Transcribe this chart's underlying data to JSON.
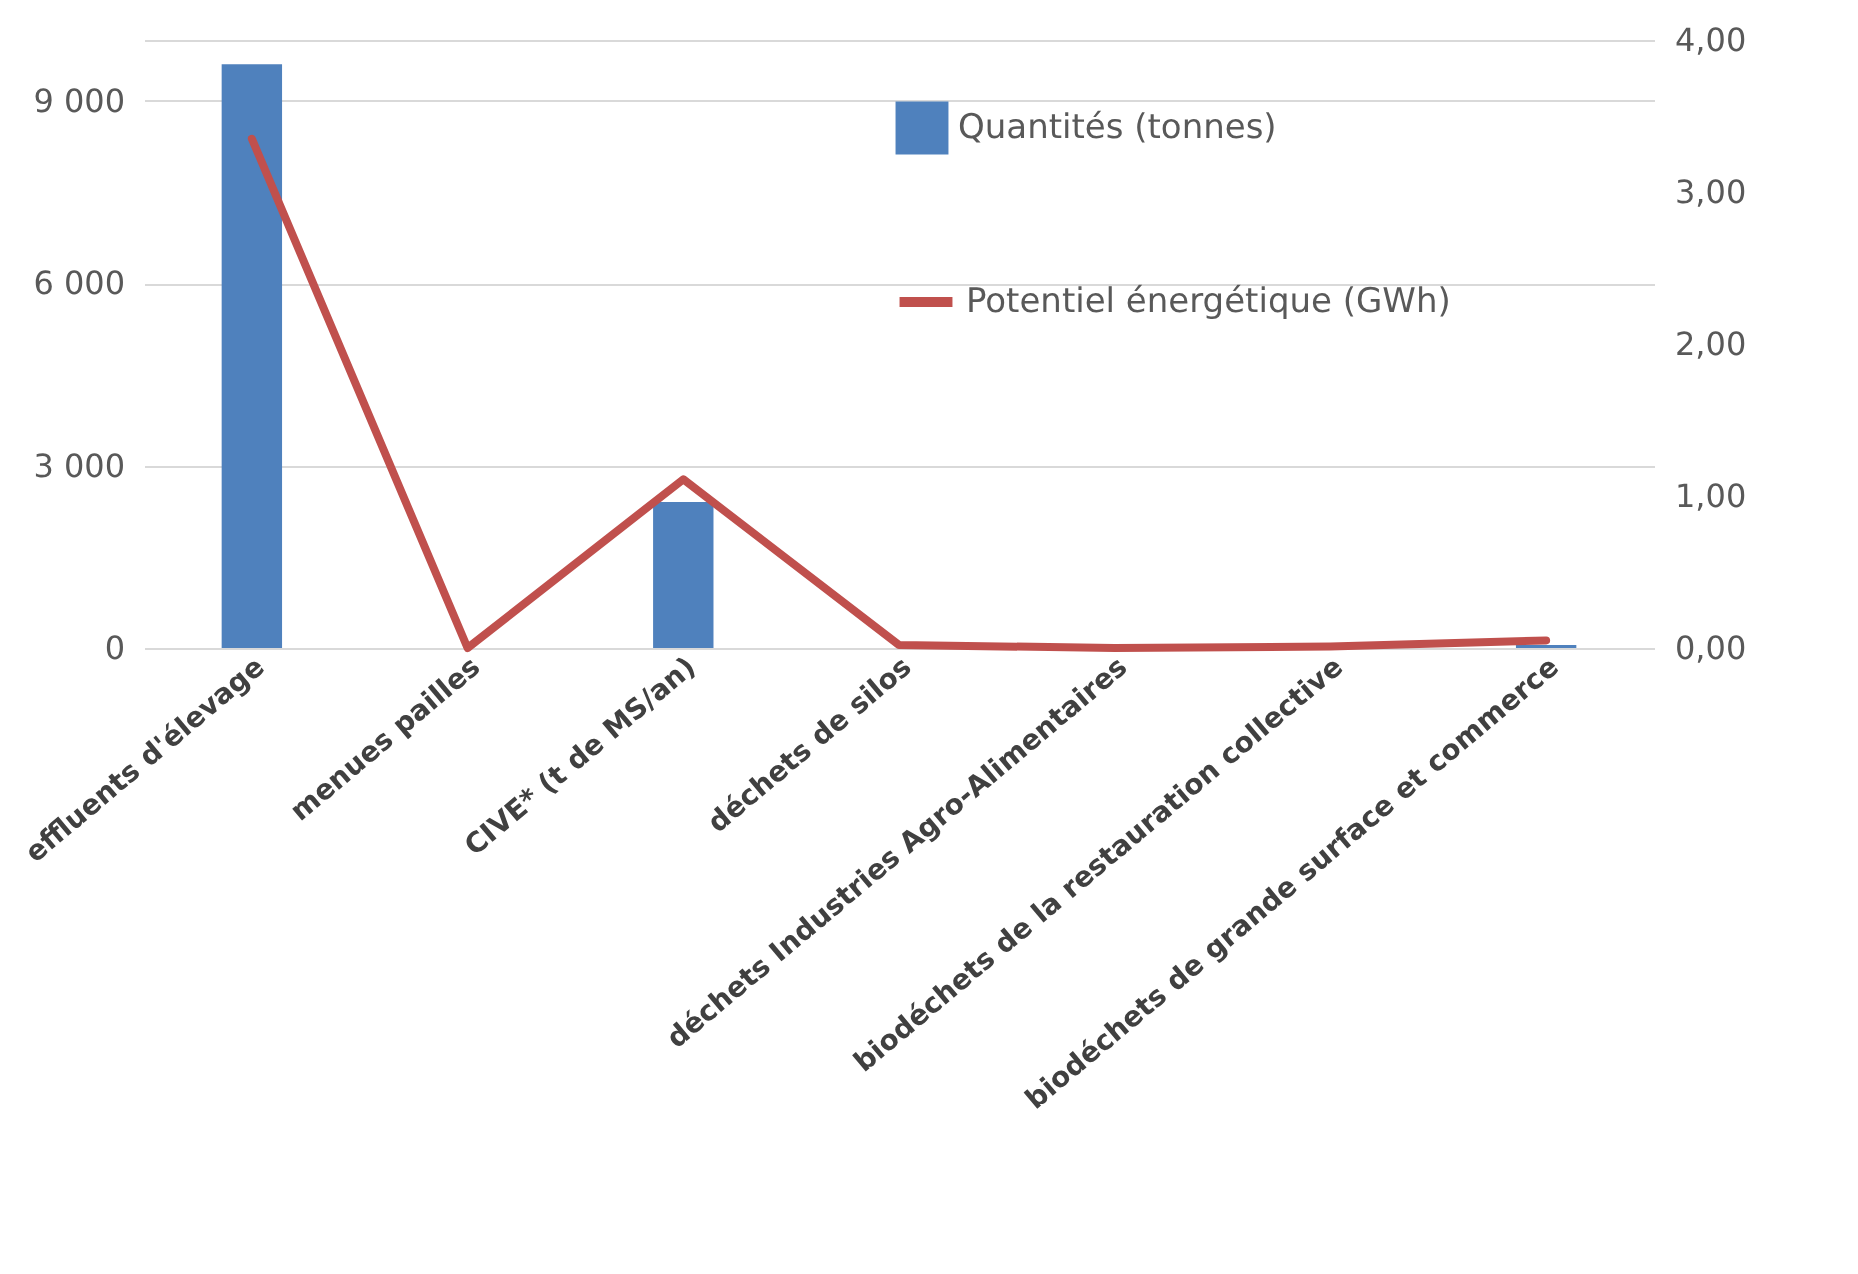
{
  "chart_data": {
    "type": "bar",
    "categories": [
      "effluents d'élevage",
      "menues pailles",
      "CIVE* (t de MS/an)",
      "déchets de silos",
      "déchets Industries Agro-Alimentaires",
      "biodéchets de la restauration collective",
      "biodéchets de grande surface et commerce"
    ],
    "series": [
      {
        "name": "Quantités (tonnes)",
        "color": "#4f81bd",
        "values": [
          9600,
          0,
          2400,
          0,
          0,
          0,
          50
        ]
      },
      {
        "name": "Potentiel énergétique (GWh)",
        "color": "#c0504d",
        "type": "line",
        "axis": "y2",
        "values": [
          3.35,
          0,
          1.11,
          0.02,
          0,
          0.01,
          0.05
        ]
      }
    ],
    "ylim": [
      0,
      10000
    ],
    "yticks": [
      0,
      {
        "value": 3000,
        "label": "3 000"
      },
      {
        "value": 6000,
        "label": "6 000"
      },
      {
        "value": 9000,
        "label": "9 000"
      },
      {
        "value": 10000,
        "label": null
      }
    ],
    "y2lim": [
      0,
      4
    ],
    "y2ticks": [
      {
        "value": 0,
        "label": "0,00"
      },
      {
        "value": 1,
        "label": "1,00"
      },
      {
        "value": 2,
        "label": "2,00"
      },
      {
        "value": 3,
        "label": "3,00"
      },
      {
        "value": 4,
        "label": "4,00"
      }
    ],
    "grid": "y",
    "legend": "top right",
    "marker": "none",
    "line_style": "solid"
  }
}
